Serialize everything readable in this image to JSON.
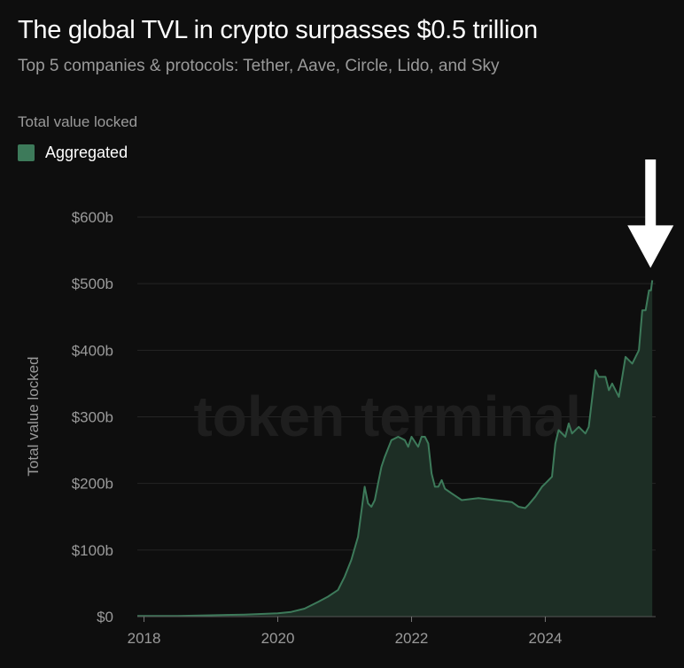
{
  "header": {
    "title": "The global TVL in crypto surpasses $0.5 trillion",
    "subtitle": "Top 5 companies & protocols: Tether, Aave, Circle, Lido, and Sky"
  },
  "legend": {
    "title": "Total value locked",
    "items": [
      {
        "label": "Aggregated",
        "color": "#3d7a5a"
      }
    ]
  },
  "watermark": "token terminal_",
  "colors": {
    "background": "#0e0e0e",
    "line": "#3d7a5a",
    "fill": "#1d2e25",
    "grid": "#262626",
    "axis_text": "#9a9a9a",
    "arrow": "#ffffff"
  },
  "chart_data": {
    "type": "area",
    "ylabel": "Total value locked",
    "xlabel": "",
    "xlim": [
      2017.9,
      2025.65
    ],
    "ylim": [
      0,
      600
    ],
    "x_ticks": [
      2018,
      2020,
      2022,
      2024
    ],
    "x_tick_labels": [
      "2018",
      "2020",
      "2022",
      "2024"
    ],
    "y_ticks": [
      0,
      100,
      200,
      300,
      400,
      500,
      600
    ],
    "y_tick_labels": [
      "$0",
      "$100b",
      "$200b",
      "$300b",
      "$400b",
      "$500b",
      "$600b"
    ],
    "grid": true,
    "legend_position": "top-left",
    "annotation": {
      "type": "down-arrow",
      "target_x": 2025.6,
      "target_y": 505
    },
    "series": [
      {
        "name": "Aggregated",
        "x": [
          2017.9,
          2018.5,
          2019.0,
          2019.5,
          2020.0,
          2020.2,
          2020.4,
          2020.6,
          2020.75,
          2020.9,
          2021.0,
          2021.1,
          2021.2,
          2021.3,
          2021.35,
          2021.4,
          2021.45,
          2021.5,
          2021.55,
          2021.6,
          2021.7,
          2021.8,
          2021.9,
          2021.95,
          2022.0,
          2022.1,
          2022.15,
          2022.2,
          2022.25,
          2022.3,
          2022.35,
          2022.4,
          2022.45,
          2022.5,
          2022.6,
          2022.75,
          2023.0,
          2023.25,
          2023.5,
          2023.6,
          2023.7,
          2023.75,
          2023.85,
          2023.95,
          2024.0,
          2024.1,
          2024.15,
          2024.2,
          2024.3,
          2024.35,
          2024.4,
          2024.5,
          2024.6,
          2024.65,
          2024.75,
          2024.8,
          2024.9,
          2024.95,
          2025.0,
          2025.1,
          2025.15,
          2025.2,
          2025.3,
          2025.4,
          2025.45,
          2025.5,
          2025.55,
          2025.58,
          2025.6
        ],
        "values": [
          1,
          1,
          2,
          3,
          5,
          7,
          12,
          22,
          30,
          40,
          60,
          85,
          120,
          195,
          170,
          165,
          175,
          200,
          225,
          240,
          265,
          270,
          265,
          255,
          270,
          255,
          270,
          270,
          260,
          215,
          195,
          195,
          205,
          192,
          185,
          175,
          178,
          175,
          172,
          165,
          163,
          168,
          180,
          195,
          200,
          210,
          260,
          280,
          270,
          290,
          275,
          285,
          275,
          285,
          370,
          360,
          360,
          340,
          350,
          330,
          360,
          390,
          380,
          400,
          460,
          460,
          490,
          490,
          505
        ]
      }
    ]
  }
}
